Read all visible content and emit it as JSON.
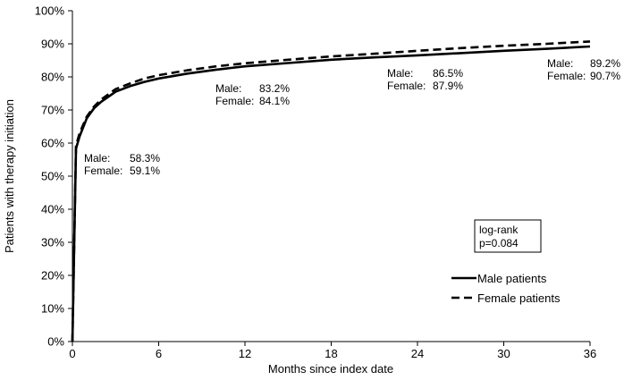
{
  "chart_data": {
    "type": "line",
    "xlabel": "Months since index date",
    "ylabel": "Patients with therapy initiation",
    "xlim": [
      0,
      36
    ],
    "ylim": [
      0,
      100
    ],
    "x_ticks": [
      0,
      6,
      12,
      18,
      24,
      30,
      36
    ],
    "y_ticks": [
      "0%",
      "10%",
      "20%",
      "30%",
      "40%",
      "50%",
      "60%",
      "70%",
      "80%",
      "90%",
      "100%"
    ],
    "y_tick_values": [
      0,
      10,
      20,
      30,
      40,
      50,
      60,
      70,
      80,
      90,
      100
    ],
    "grid": false,
    "legend_position": "bottom-right",
    "series": [
      {
        "name": "Male patients",
        "style": "solid",
        "color": "#000000",
        "x": [
          0,
          0.25,
          0.5,
          1,
          1.5,
          2,
          3,
          4,
          5,
          6,
          8,
          10,
          12,
          15,
          18,
          21,
          24,
          27,
          30,
          33,
          36
        ],
        "y": [
          0,
          58.3,
          62,
          67.5,
          70.5,
          72.5,
          75.5,
          77.2,
          78.5,
          79.5,
          81.0,
          82.2,
          83.2,
          84.2,
          85.2,
          85.9,
          86.5,
          87.2,
          87.9,
          88.5,
          89.2
        ]
      },
      {
        "name": "Female patients",
        "style": "dashed",
        "color": "#000000",
        "x": [
          0,
          0.25,
          0.5,
          1,
          1.5,
          2,
          3,
          4,
          5,
          6,
          8,
          10,
          12,
          15,
          18,
          21,
          24,
          27,
          30,
          33,
          36
        ],
        "y": [
          0,
          59.1,
          63,
          68.0,
          71.0,
          73.2,
          76.3,
          78.0,
          79.5,
          80.5,
          82.0,
          83.2,
          84.1,
          85.2,
          86.2,
          87.0,
          87.9,
          88.7,
          89.4,
          90.0,
          90.7
        ]
      }
    ],
    "annotations": [
      {
        "x_month": 0,
        "male_label": "Male:",
        "male_value": "58.3%",
        "female_label": "Female:",
        "female_value": "59.1%"
      },
      {
        "x_month": 12,
        "male_label": "Male:",
        "male_value": "83.2%",
        "female_label": "Female:",
        "female_value": "84.1%"
      },
      {
        "x_month": 24,
        "male_label": "Male:",
        "male_value": "86.5%",
        "female_label": "Female:",
        "female_value": "87.9%"
      },
      {
        "x_month": 36,
        "male_label": "Male:",
        "male_value": "89.2%",
        "female_label": "Female:",
        "female_value": "90.7%"
      }
    ],
    "stat_box": {
      "line1": "log-rank",
      "line2": "p=0.084"
    }
  }
}
